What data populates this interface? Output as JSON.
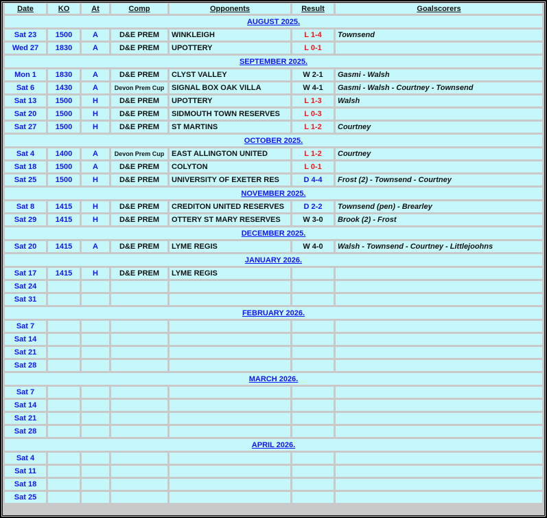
{
  "headers": [
    "Date",
    "KO",
    "At",
    "Comp",
    "Opponents",
    "Result",
    "Goalscorers"
  ],
  "colors": {
    "cell_bg": "#c6f8fb",
    "border": "#c9c9c9",
    "date_text": "#1212ff",
    "loss": "#ff1010",
    "draw": "#1212ff",
    "win": "#111111"
  },
  "months": [
    {
      "label": "AUGUST 2025.",
      "rows": [
        {
          "date": "Sat 23",
          "ko": "1500",
          "at": "A",
          "comp": "D&E PREM",
          "opp": "WINKLEIGH",
          "result": "L 1-4",
          "type": "loss",
          "scorers": "Townsend"
        },
        {
          "date": "Wed 27",
          "ko": "1830",
          "at": "A",
          "comp": "D&E PREM",
          "opp": "UPOTTERY",
          "result": "L 0-1",
          "type": "loss",
          "scorers": ""
        }
      ]
    },
    {
      "label": "SEPTEMBER 2025.",
      "rows": [
        {
          "date": "Mon 1",
          "ko": "1830",
          "at": "A",
          "comp": "D&E PREM",
          "opp": "CLYST VALLEY",
          "result": "W 2-1",
          "type": "win",
          "scorers": "Gasmi - Walsh"
        },
        {
          "date": "Sat 6",
          "ko": "1430",
          "at": "A",
          "comp": "Devon Prem Cup",
          "opp": "SIGNAL BOX OAK VILLA",
          "result": "W 4-1",
          "type": "win",
          "scorers": "Gasmi - Walsh - Courtney - Townsend"
        },
        {
          "date": "Sat 13",
          "ko": "1500",
          "at": "H",
          "comp": "D&E PREM",
          "opp": "UPOTTERY",
          "result": "L 1-3",
          "type": "loss",
          "scorers": "Walsh"
        },
        {
          "date": "Sat 20",
          "ko": "1500",
          "at": "H",
          "comp": "D&E PREM",
          "opp": "SIDMOUTH TOWN RESERVES",
          "result": "L 0-3",
          "type": "loss",
          "scorers": ""
        },
        {
          "date": "Sat 27",
          "ko": "1500",
          "at": "H",
          "comp": "D&E PREM",
          "opp": "ST MARTINS",
          "result": "L 1-2",
          "type": "loss",
          "scorers": "Courtney"
        }
      ]
    },
    {
      "label": "OCTOBER 2025.",
      "rows": [
        {
          "date": "Sat 4",
          "ko": "1400",
          "at": "A",
          "comp": "Devon Prem Cup",
          "opp": "EAST ALLINGTON UNITED",
          "result": "L 1-2",
          "type": "loss",
          "scorers": "Courtney"
        },
        {
          "date": "Sat 18",
          "ko": "1500",
          "at": "A",
          "comp": "D&E PREM",
          "opp": "COLYTON",
          "result": "L 0-1",
          "type": "loss",
          "scorers": ""
        },
        {
          "date": "Sat 25",
          "ko": "1500",
          "at": "H",
          "comp": "D&E PREM",
          "opp": "UNIVERSITY OF EXETER RES",
          "result": "D 4-4",
          "type": "draw",
          "scorers": "Frost (2) - Townsend - Courtney"
        }
      ]
    },
    {
      "label": "NOVEMBER 2025.",
      "rows": [
        {
          "date": "Sat 8",
          "ko": "1415",
          "at": "H",
          "comp": "D&E PREM",
          "opp": "CREDITON UNITED RESERVES",
          "result": "D 2-2",
          "type": "draw",
          "scorers": "Townsend (pen) - Brearley"
        },
        {
          "date": "Sat 29",
          "ko": "1415",
          "at": "H",
          "comp": "D&E PREM",
          "opp": "OTTERY ST MARY RESERVES",
          "result": "W 3-0",
          "type": "win",
          "scorers": "Brook (2) - Frost"
        }
      ]
    },
    {
      "label": "DECEMBER 2025.",
      "rows": [
        {
          "date": "Sat 20",
          "ko": "1415",
          "at": "A",
          "comp": "D&E PREM",
          "opp": "LYME REGIS",
          "result": "W 4-0",
          "type": "win",
          "scorers": "Walsh - Townsend - Courtney - Littlejoohns"
        }
      ]
    },
    {
      "label": "JANUARY 2026.",
      "rows": [
        {
          "date": "Sat 17",
          "ko": "1415",
          "at": "H",
          "comp": "D&E PREM",
          "opp": "LYME REGIS",
          "result": "",
          "type": "",
          "scorers": ""
        },
        {
          "date": "Sat 24"
        },
        {
          "date": "Sat 31"
        }
      ]
    },
    {
      "label": "FEBRUARY 2026.",
      "rows": [
        {
          "date": "Sat 7"
        },
        {
          "date": "Sat 14"
        },
        {
          "date": "Sat 21"
        },
        {
          "date": "Sat 28"
        }
      ]
    },
    {
      "label": "MARCH 2026.",
      "rows": [
        {
          "date": "Sat 7"
        },
        {
          "date": "Sat 14"
        },
        {
          "date": "Sat 21"
        },
        {
          "date": "Sat 28"
        }
      ]
    },
    {
      "label": "APRIL 2026.",
      "rows": [
        {
          "date": "Sat 4"
        },
        {
          "date": "Sat 11"
        },
        {
          "date": "Sat 18"
        },
        {
          "date": "Sat 25"
        }
      ]
    }
  ]
}
